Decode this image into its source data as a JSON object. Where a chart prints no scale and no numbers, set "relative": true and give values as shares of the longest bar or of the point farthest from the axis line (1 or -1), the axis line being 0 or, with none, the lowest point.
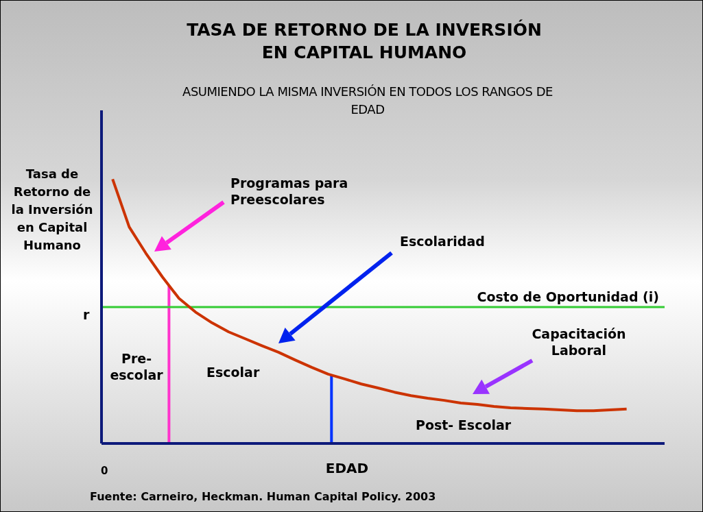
{
  "chart_data": {
    "type": "line",
    "relative": true,
    "title": "TASA DE RETORNO DE LA INVERSIÓN EN CAPITAL HUMANO",
    "subtitle": "ASUMIENDO LA MISMA INVERSIÓN EN TODOS LOS RANGOS DE EDAD",
    "xlabel": "EDAD",
    "ylabel": "Tasa de Retorno de la Inversión en Capital Humano",
    "marker": "none",
    "line_style": "solid",
    "categories": [
      null,
      null,
      null,
      null,
      null,
      null,
      null,
      null,
      null,
      null,
      null,
      null,
      null,
      null,
      null,
      null,
      null,
      null,
      null,
      null,
      null,
      null,
      null,
      null,
      null,
      null,
      null,
      null,
      null,
      null,
      null,
      null
    ],
    "series": [
      {
        "color": "#cc3300",
        "values": [
          1,
          0.819,
          0.72,
          0.63,
          0.549,
          0.497,
          0.456,
          0.422,
          0.396,
          0.37,
          0.345,
          0.316,
          0.288,
          0.262,
          0.244,
          0.225,
          0.21,
          0.194,
          0.181,
          0.171,
          0.163,
          0.153,
          0.148,
          0.14,
          0.135,
          0.132,
          0.13,
          0.127,
          0.124,
          0.124,
          0.127,
          0.13
        ]
      }
    ],
    "ref_lines": [
      {
        "axis": "y",
        "value": 0.516,
        "label": "Costo de Oportunidad (i)",
        "color": "#33cc33"
      }
    ],
    "annotations": [
      "Programas para Preescolares",
      "Escolaridad",
      "Capacitación Laboral",
      "Pre-escolar",
      "Escolar",
      "Post- Escolar",
      "r",
      "0",
      "Fuente: Carneiro, Heckman. Human Capital Policy. 2003"
    ]
  }
}
